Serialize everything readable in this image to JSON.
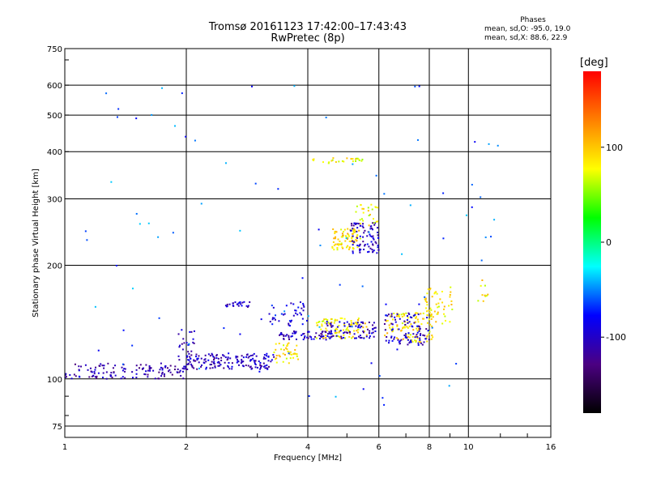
{
  "chart_data": {
    "type": "scatter",
    "title": "Tromsø 20161123 17:42:00–17:43:43",
    "subtitle": "RwPretec (8p)",
    "xlabel": "Frequency [MHz]",
    "ylabel": "Stationary phase Virtual Height [km]",
    "xscale": "log",
    "yscale": "log",
    "xlim": [
      1,
      16
    ],
    "ylim": [
      70,
      750
    ],
    "xticks": [
      1,
      2,
      4,
      6,
      8,
      10,
      16
    ],
    "yticks": [
      75,
      100,
      200,
      300,
      400,
      500,
      600,
      750
    ],
    "grid": true,
    "colorbar": {
      "label": "[deg]",
      "range": [
        -180,
        180
      ],
      "ticks": [
        100,
        0,
        -100
      ],
      "colors": [
        "#000000",
        "#4b0082",
        "#0000ff",
        "#00ffff",
        "#00ff00",
        "#ffff00",
        "#ff8000",
        "#ff0000"
      ]
    },
    "phase_info": {
      "title": "Phases",
      "line1": "mean, sd,O: -95.0, 19.0",
      "line2": "mean, sd,X: 88.6, 22.9"
    },
    "clusters": [
      {
        "fmin": 1.0,
        "fmax": 2.0,
        "hmin": 100,
        "hmax": 110,
        "phase": -110,
        "n": 130
      },
      {
        "fmin": 2.0,
        "fmax": 3.3,
        "hmin": 106,
        "hmax": 117,
        "phase": -105,
        "n": 160
      },
      {
        "fmin": 1.9,
        "fmax": 2.1,
        "hmin": 108,
        "hmax": 135,
        "phase": -100,
        "n": 25
      },
      {
        "fmin": 3.3,
        "fmax": 3.8,
        "hmin": 110,
        "hmax": 125,
        "phase": 90,
        "n": 40
      },
      {
        "fmin": 3.4,
        "fmax": 4.6,
        "hmin": 127,
        "hmax": 134,
        "phase": -105,
        "n": 60
      },
      {
        "fmin": 4.2,
        "fmax": 5.6,
        "hmin": 128,
        "hmax": 145,
        "phase": 85,
        "n": 90
      },
      {
        "fmin": 4.4,
        "fmax": 5.9,
        "hmin": 128,
        "hmax": 142,
        "phase": -100,
        "n": 80
      },
      {
        "fmin": 2.5,
        "fmax": 2.9,
        "hmin": 155,
        "hmax": 160,
        "phase": -100,
        "n": 25
      },
      {
        "fmin": 3.2,
        "fmax": 4.0,
        "hmin": 138,
        "hmax": 160,
        "phase": -90,
        "n": 40
      },
      {
        "fmin": 4.6,
        "fmax": 5.4,
        "hmin": 220,
        "hmax": 250,
        "phase": 90,
        "n": 80
      },
      {
        "fmin": 5.1,
        "fmax": 6.0,
        "hmin": 215,
        "hmax": 260,
        "phase": -105,
        "n": 80
      },
      {
        "fmin": 5.2,
        "fmax": 6.0,
        "hmin": 255,
        "hmax": 290,
        "phase": 80,
        "n": 25
      },
      {
        "fmin": 4.0,
        "fmax": 5.5,
        "hmin": 370,
        "hmax": 385,
        "phase": 80,
        "n": 25
      },
      {
        "fmin": 6.2,
        "fmax": 8.2,
        "hmin": 125,
        "hmax": 150,
        "phase": 90,
        "n": 110
      },
      {
        "fmin": 6.2,
        "fmax": 8.0,
        "hmin": 122,
        "hmax": 150,
        "phase": -100,
        "n": 90
      },
      {
        "fmin": 7.8,
        "fmax": 9.2,
        "hmin": 140,
        "hmax": 175,
        "phase": 85,
        "n": 50
      },
      {
        "fmin": 10.5,
        "fmax": 11.2,
        "hmin": 160,
        "hmax": 185,
        "phase": 85,
        "n": 10
      },
      {
        "fmin": 1.0,
        "fmax": 12.0,
        "hmin": 85,
        "hmax": 600,
        "phase": -60,
        "n": 90
      }
    ]
  }
}
